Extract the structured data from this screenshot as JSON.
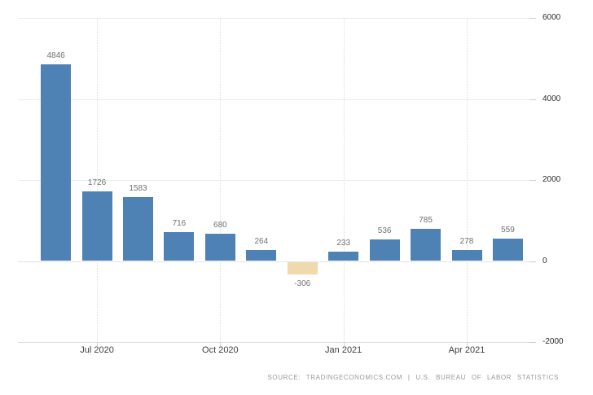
{
  "chart_data": {
    "type": "bar",
    "title": "",
    "xlabel": "",
    "ylabel": "",
    "ylim": [
      -2000,
      6000
    ],
    "grid": true,
    "legend_position": "none",
    "y_ticks": [
      6000,
      4000,
      2000,
      0,
      -2000
    ],
    "y_tick_labels": [
      "6000",
      "4000",
      "2000",
      "0",
      "-2000"
    ],
    "x_ticks": [
      {
        "label": "Jul 2020",
        "bar_index": 1
      },
      {
        "label": "Oct 2020",
        "bar_index": 4
      },
      {
        "label": "Jan 2021",
        "bar_index": 7
      },
      {
        "label": "Apr 2021",
        "bar_index": 10
      }
    ],
    "values": [
      4846,
      1726,
      1583,
      716,
      680,
      264,
      -306,
      233,
      536,
      785,
      278,
      559
    ],
    "value_labels": [
      "4846",
      "1726",
      "1583",
      "716",
      "680",
      "264",
      "-306",
      "233",
      "536",
      "785",
      "278",
      "559"
    ],
    "colors": {
      "bar_positive": "#4E82B4",
      "bar_negative": "#EFD9AD",
      "gridline": "#EBEBEB",
      "value_label": "#707070",
      "x_axis_label": "#3F3F3F",
      "y_axis_label": "#2B2B2B"
    }
  },
  "source_credit": "SOURCE: TRADINGECONOMICS.COM | U.S. BUREAU OF LABOR STATISTICS"
}
